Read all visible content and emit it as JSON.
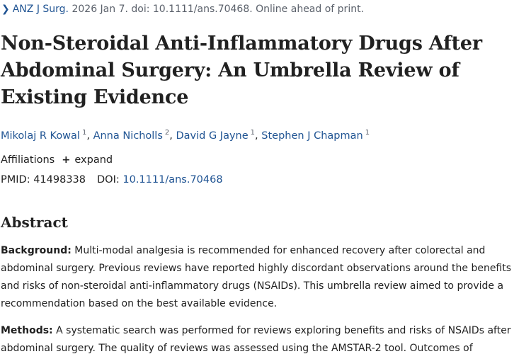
{
  "citation": {
    "journal": "ANZ J Surg.",
    "details": " 2026 Jan 7. doi: 10.1111/ans.70468. Online ahead of print."
  },
  "title": "Non-Steroidal Anti-Inflammatory Drugs After Abdominal Surgery: An Umbrella Review of Existing Evidence",
  "authors": [
    {
      "name": "Mikolaj R Kowal",
      "sup": "1"
    },
    {
      "name": "Anna Nicholls",
      "sup": "2"
    },
    {
      "name": "David G Jayne",
      "sup": "1"
    },
    {
      "name": "Stephen J Chapman",
      "sup": "1"
    }
  ],
  "affiliations": {
    "label": "Affiliations",
    "expand_label": "expand"
  },
  "ids": {
    "pmid_label": "PMID:",
    "pmid": "41498338",
    "doi_label": "DOI:",
    "doi": "10.1111/ans.70468"
  },
  "abstract": {
    "heading": "Abstract",
    "background_label": "Background:",
    "background_text": " Multi-modal analgesia is recommended for enhanced recovery after colorectal and abdominal surgery. Previous reviews have reported highly discordant observations around the benefits and risks of non-steroidal anti-inflammatory drugs (NSAIDs). This umbrella review aimed to provide a recommendation based on the best available evidence.",
    "methods_label": "Methods:",
    "methods_text": " A systematic search was performed for reviews exploring benefits and risks of NSAIDs after abdominal surgery. The quality of reviews was assessed using the AMSTAR-2 tool. Outcomes of"
  },
  "colors": {
    "link": "#205493",
    "text": "#212121",
    "muted": "#5b616b"
  }
}
